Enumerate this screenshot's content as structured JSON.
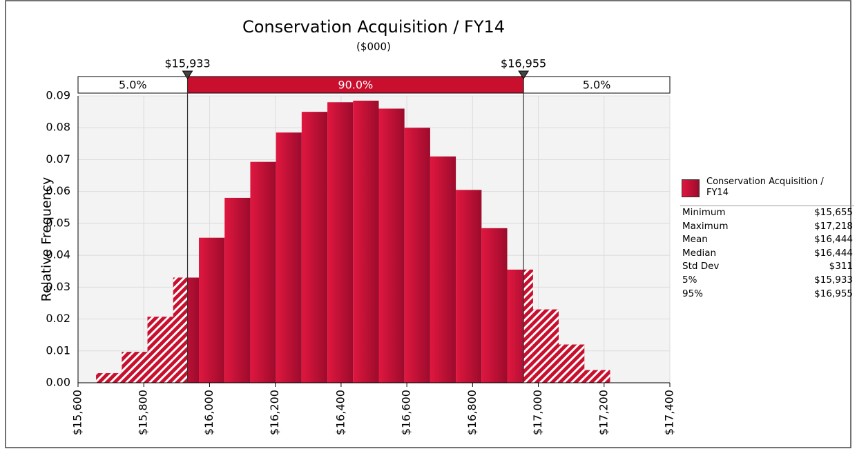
{
  "chart_data": {
    "type": "histogram",
    "title": "Conservation Acquisition / FY14",
    "subtitle": "($000)",
    "ylabel": "Relative Frequency",
    "color": "#c8102e",
    "series_name": "Conservation Acquisition / FY14",
    "bins": [
      15655,
      15733.2,
      15811.3,
      15889.5,
      15967.6,
      16045.8,
      16123.9,
      16202.1,
      16280.2,
      16358.4,
      16436.5,
      16514.7,
      16592.8,
      16671.0,
      16749.1,
      16827.3,
      16905.4,
      16983.6,
      17061.7,
      17139.9,
      17218
    ],
    "values": [
      0.003,
      0.0097,
      0.0207,
      0.033,
      0.0455,
      0.058,
      0.0693,
      0.0785,
      0.085,
      0.088,
      0.0885,
      0.086,
      0.08,
      0.071,
      0.0605,
      0.0485,
      0.0355,
      0.023,
      0.012,
      0.004
    ],
    "xlim": [
      15600,
      17400
    ],
    "xticks": [
      {
        "value": 15600,
        "label": "$15,600"
      },
      {
        "value": 15800,
        "label": "$15,800"
      },
      {
        "value": 16000,
        "label": "$16,000"
      },
      {
        "value": 16200,
        "label": "$16,200"
      },
      {
        "value": 16400,
        "label": "$16,400"
      },
      {
        "value": 16600,
        "label": "$16,600"
      },
      {
        "value": 16800,
        "label": "$16,800"
      },
      {
        "value": 17000,
        "label": "$17,000"
      },
      {
        "value": 17200,
        "label": "$17,200"
      },
      {
        "value": 17400,
        "label": "$17,400"
      }
    ],
    "ylim": [
      0,
      0.09
    ],
    "yticks": [
      {
        "value": 0,
        "label": "0.00"
      },
      0.01,
      0.02,
      0.03,
      0.04,
      0.05,
      0.06,
      0.07,
      0.08,
      0.09
    ],
    "grid": true,
    "delimiters": [
      {
        "value": 15933,
        "label": "$15,933"
      },
      {
        "value": 16955,
        "label": "$16,955"
      }
    ],
    "regions": [
      {
        "value": 5.0,
        "label": "5.0%"
      },
      {
        "value": 90.0,
        "label": "90.0%"
      },
      {
        "value": 5.0,
        "label": "5.0%"
      }
    ],
    "stats": [
      {
        "label": "Minimum",
        "value": "$15,655"
      },
      {
        "label": "Maximum",
        "value": "$17,218"
      },
      {
        "label": "Mean",
        "value": "$16,444"
      },
      {
        "label": "Median",
        "value": "$16,444"
      },
      {
        "label": "Std Dev",
        "value": "$311"
      },
      {
        "label": "5%",
        "value": "$15,933"
      },
      {
        "label": "95%",
        "value": "$16,955"
      }
    ]
  }
}
